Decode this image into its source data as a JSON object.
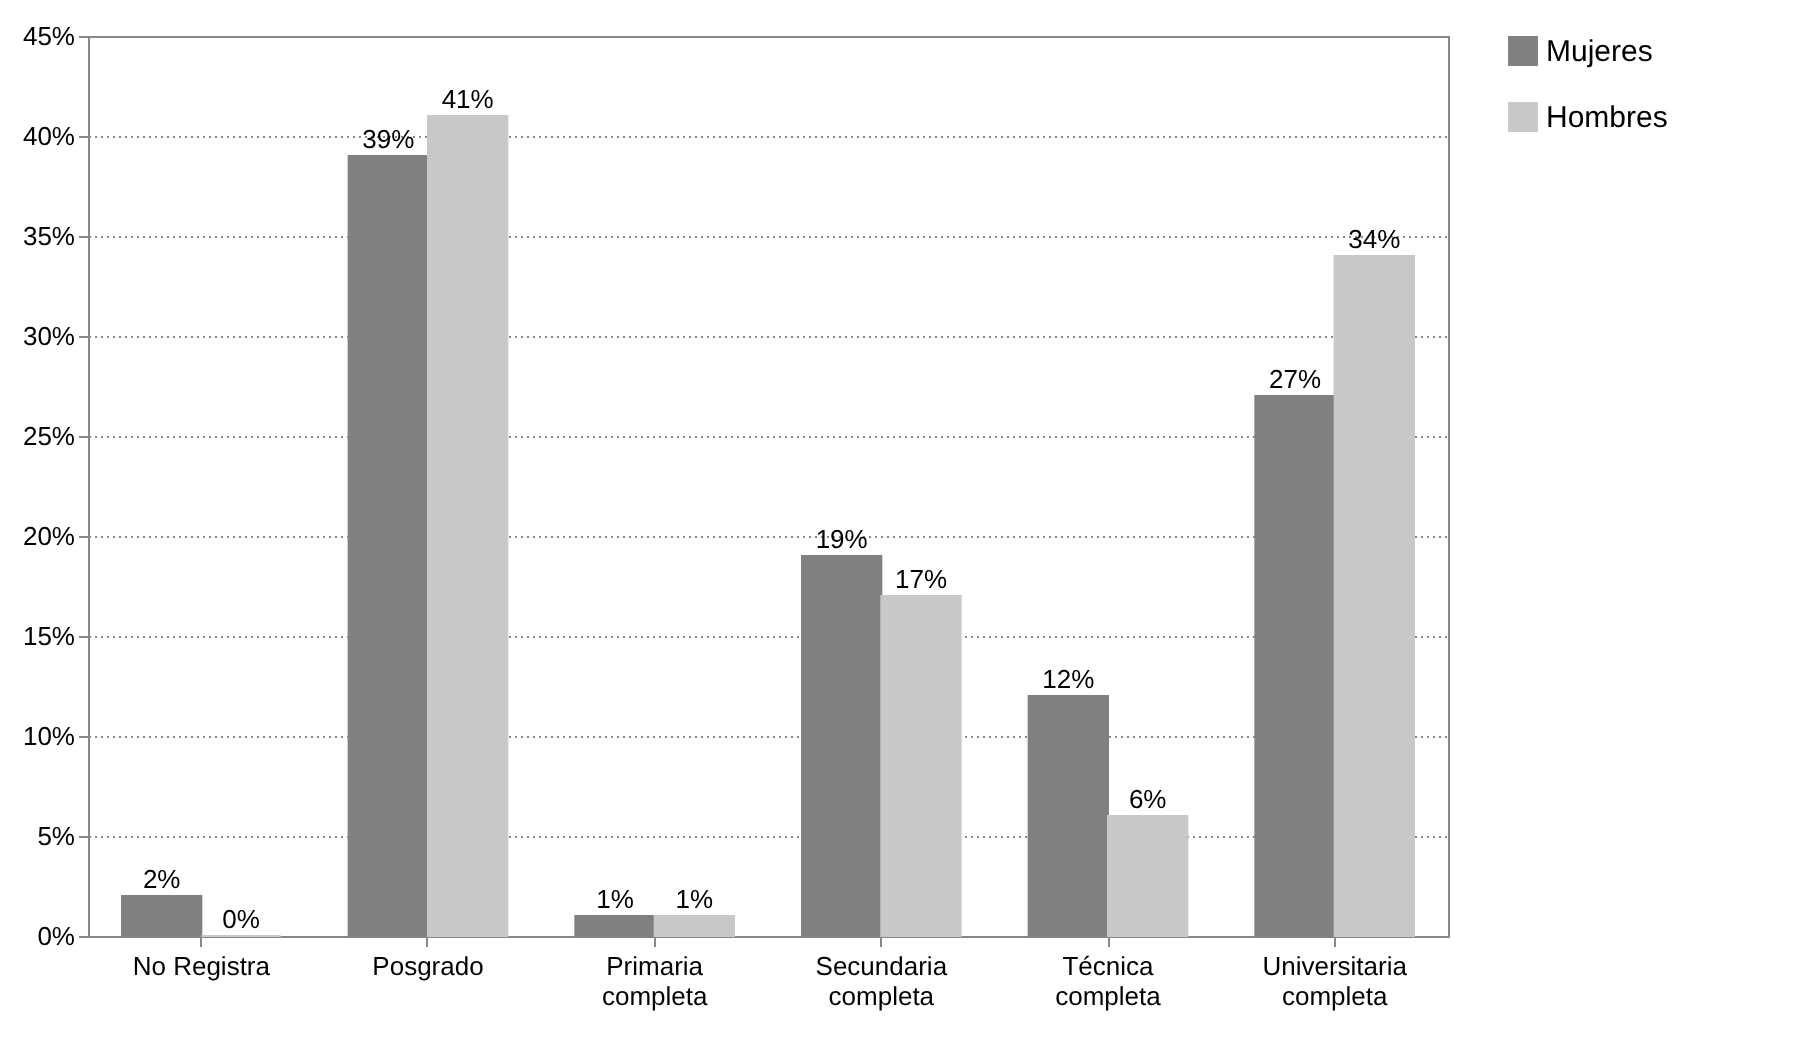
{
  "chart_data": {
    "type": "bar",
    "categories": [
      "No Registra",
      "Posgrado",
      "Primaria completa",
      "Secundaria completa",
      "Técnica completa",
      "Universitaria completa"
    ],
    "series": [
      {
        "name": "Mujeres",
        "color": "#808080",
        "values": [
          2,
          39,
          1,
          19,
          12,
          27
        ],
        "value_labels": [
          "2%",
          "39%",
          "1%",
          "19%",
          "12%",
          "27%"
        ]
      },
      {
        "name": "Hombres",
        "color": "#c8c8c8",
        "values": [
          0,
          41,
          1,
          17,
          6,
          34
        ],
        "value_labels": [
          "0%",
          "41%",
          "1%",
          "17%",
          "6%",
          "34%"
        ]
      }
    ],
    "ylim": [
      0,
      45
    ],
    "yticks": [
      {
        "value": 0,
        "label": "0%"
      },
      {
        "value": 5,
        "label": "5%"
      },
      {
        "value": 10,
        "label": "10%"
      },
      {
        "value": 15,
        "label": "15%"
      },
      {
        "value": 20,
        "label": "20%"
      },
      {
        "value": 25,
        "label": "25%"
      },
      {
        "value": 30,
        "label": "30%"
      },
      {
        "value": 35,
        "label": "35%"
      },
      {
        "value": 40,
        "label": "40%"
      },
      {
        "value": 45,
        "label": "45%"
      }
    ],
    "grid": "y",
    "legend": "right"
  }
}
